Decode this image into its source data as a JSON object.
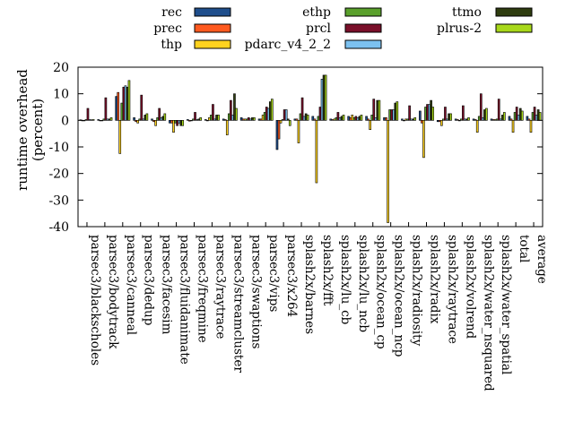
{
  "chart_data": {
    "type": "bar",
    "title": "",
    "xlabel": "",
    "ylabel": "runtime overhead (percent)",
    "ylabel_lines": [
      "runtime overhead",
      "(percent)"
    ],
    "ylim": [
      -40,
      20
    ],
    "yticks": [
      -40,
      -30,
      -20,
      -10,
      0,
      10,
      20
    ],
    "ytick_labels": [
      "-40",
      "-30",
      "-20",
      "-10",
      "0",
      "10",
      "20"
    ],
    "grid": false,
    "legend_position": "top",
    "categories": [
      "parsec3/blackscholes",
      "parsec3/bodytrack",
      "parsec3/canneal",
      "parsec3/dedup",
      "parsec3/facesim",
      "parsec3/fluidanimate",
      "parsec3/freqmine",
      "parsec3/raytrace",
      "parsec3/streamcluster",
      "parsec3/swaptions",
      "parsec3/vips",
      "parsec3/x264",
      "splash2x/barnes",
      "splash2x/fft",
      "splash2x/lu_cb",
      "splash2x/lu_ncb",
      "splash2x/ocean_cp",
      "splash2x/ocean_ncp",
      "splash2x/radiosity",
      "splash2x/radix",
      "splash2x/raytrace",
      "splash2x/volrend",
      "splash2x/water_nsquared",
      "splash2x/water_spatial",
      "total",
      "average"
    ],
    "series": [
      {
        "name": "rec",
        "color": "#1f4e8c",
        "values": [
          0.2,
          0.3,
          9.0,
          1.0,
          0.5,
          -1.0,
          0.3,
          0.3,
          0.5,
          1.0,
          0.5,
          -11.0,
          0.5,
          1.5,
          0.5,
          1.5,
          1.5,
          1.0,
          0.5,
          3.5,
          -0.5,
          0.5,
          0.5,
          0.5,
          1.5,
          1.5
        ]
      },
      {
        "name": "prec",
        "color": "#ff5a1f",
        "values": [
          0.0,
          0.0,
          10.5,
          -0.5,
          -0.5,
          -1.0,
          -0.3,
          0.0,
          0.3,
          0.5,
          0.5,
          -7.0,
          0.5,
          0.5,
          0.3,
          1.0,
          0.5,
          1.0,
          0.0,
          -1.0,
          -0.5,
          0.3,
          0.3,
          0.3,
          0.5,
          0.5
        ]
      },
      {
        "name": "thp",
        "color": "#ffd21f",
        "values": [
          0.0,
          0.0,
          -12.5,
          -1.0,
          -2.0,
          -4.5,
          0.0,
          1.0,
          -5.5,
          0.5,
          2.0,
          -1.0,
          -8.5,
          -23.5,
          0.5,
          2.0,
          -3.5,
          -38.5,
          0.5,
          -14.0,
          -2.0,
          0.0,
          -4.5,
          0.3,
          -4.5,
          -4.5
        ]
      },
      {
        "name": "ethp",
        "color": "#5aa02c",
        "values": [
          0.3,
          0.5,
          6.5,
          0.5,
          1.0,
          -1.0,
          0.5,
          2.0,
          2.5,
          0.5,
          3.0,
          0.3,
          2.5,
          1.5,
          1.0,
          1.0,
          2.0,
          4.0,
          0.5,
          5.0,
          0.5,
          0.5,
          1.5,
          0.5,
          3.0,
          3.0
        ]
      },
      {
        "name": "prcl",
        "color": "#7a0f2a",
        "values": [
          4.5,
          8.5,
          12.5,
          9.5,
          4.5,
          -2.0,
          3.0,
          6.0,
          7.5,
          1.0,
          5.0,
          4.0,
          8.5,
          5.0,
          3.0,
          1.5,
          8.0,
          4.0,
          5.5,
          6.0,
          5.0,
          5.5,
          10.0,
          8.0,
          5.0,
          5.0
        ]
      },
      {
        "name": "pdarc_v4_2_2",
        "color": "#7cc1f0",
        "values": [
          0.3,
          0.5,
          13.0,
          0.5,
          1.0,
          -1.0,
          0.3,
          0.5,
          2.0,
          0.5,
          4.5,
          4.0,
          1.5,
          15.5,
          1.0,
          1.0,
          1.0,
          4.0,
          0.5,
          6.0,
          0.5,
          0.5,
          1.0,
          0.5,
          2.0,
          2.0
        ]
      },
      {
        "name": "ttmo",
        "color": "#2f3d10",
        "values": [
          0.2,
          0.5,
          12.5,
          2.0,
          1.5,
          -2.0,
          0.5,
          2.0,
          10.0,
          1.0,
          7.0,
          0.5,
          2.5,
          17.0,
          1.5,
          1.5,
          7.5,
          6.5,
          0.5,
          7.5,
          2.5,
          0.5,
          4.0,
          2.0,
          4.5,
          4.0
        ]
      },
      {
        "name": "plrus-2",
        "color": "#a8d81a",
        "values": [
          0.3,
          1.0,
          15.0,
          2.5,
          2.5,
          -2.0,
          1.0,
          2.0,
          4.5,
          1.0,
          8.0,
          -2.0,
          2.0,
          17.0,
          2.0,
          2.0,
          7.5,
          7.0,
          1.0,
          5.0,
          2.5,
          1.0,
          4.5,
          3.0,
          3.5,
          3.0
        ]
      }
    ]
  }
}
